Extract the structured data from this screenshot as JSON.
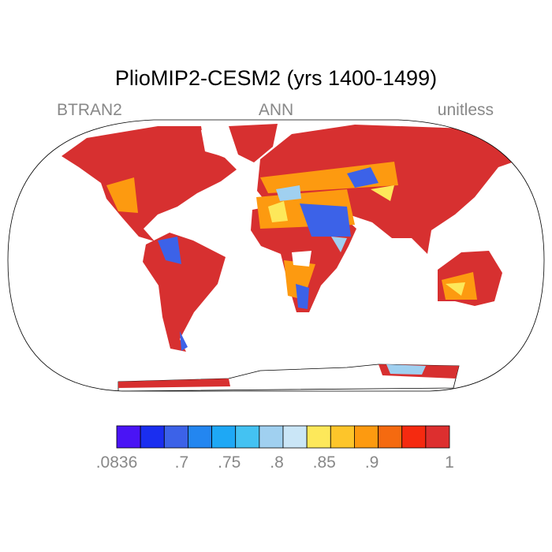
{
  "header": {
    "title": "PlioMIP2-CESM2 (yrs 1400-1499)",
    "left": "BTRAN2",
    "center": "ANN",
    "right": "unitless"
  },
  "colorbar": {
    "colors": [
      "#4a14f5",
      "#1a2ef0",
      "#3c62e8",
      "#2386f0",
      "#1ea8f5",
      "#44c2f2",
      "#a0d0f0",
      "#cae6f7",
      "#fde85a",
      "#fdc52a",
      "#fd9a10",
      "#f56a10",
      "#f52a10",
      "#dd2f2f"
    ],
    "labels": [
      ".0836",
      ".7",
      ".75",
      ".8",
      ".85",
      ".9",
      "1"
    ]
  }
}
